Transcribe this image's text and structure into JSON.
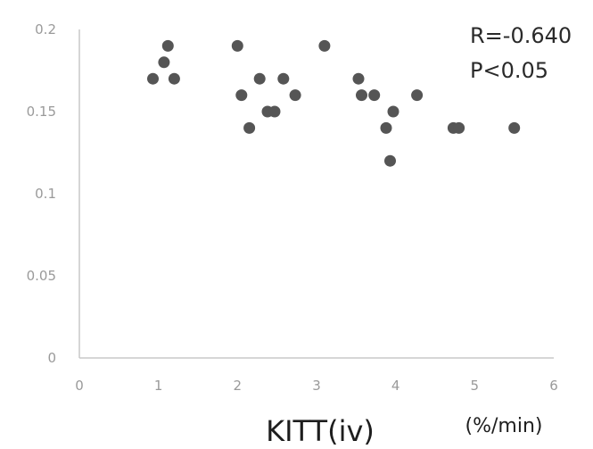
{
  "chart_data": {
    "type": "scatter",
    "title": "",
    "xlabel": "KITT(iv)",
    "xunit": "(%/min)",
    "ylabel": "",
    "xlim": [
      0,
      6
    ],
    "ylim": [
      0,
      0.2
    ],
    "xticks": [
      "0",
      "1",
      "2",
      "3",
      "4",
      "5",
      "6"
    ],
    "yticks": [
      "0",
      "0.05",
      "0.1",
      "0.15",
      "0.2"
    ],
    "grid": false,
    "annotations": [
      "R=-0.640",
      "P<0.05"
    ],
    "colors": {
      "point": "#555555",
      "axis": "#c8c8c8",
      "tick": "#9a9a9a"
    },
    "points": [
      {
        "x": 0.93,
        "y": 0.17
      },
      {
        "x": 1.07,
        "y": 0.18
      },
      {
        "x": 1.12,
        "y": 0.19
      },
      {
        "x": 1.2,
        "y": 0.17
      },
      {
        "x": 2.0,
        "y": 0.19
      },
      {
        "x": 2.05,
        "y": 0.16
      },
      {
        "x": 2.15,
        "y": 0.14
      },
      {
        "x": 2.28,
        "y": 0.17
      },
      {
        "x": 2.38,
        "y": 0.15
      },
      {
        "x": 2.47,
        "y": 0.15
      },
      {
        "x": 2.58,
        "y": 0.17
      },
      {
        "x": 2.73,
        "y": 0.16
      },
      {
        "x": 3.1,
        "y": 0.19
      },
      {
        "x": 3.53,
        "y": 0.17
      },
      {
        "x": 3.57,
        "y": 0.16
      },
      {
        "x": 3.73,
        "y": 0.16
      },
      {
        "x": 3.88,
        "y": 0.14
      },
      {
        "x": 3.93,
        "y": 0.12
      },
      {
        "x": 3.97,
        "y": 0.15
      },
      {
        "x": 4.27,
        "y": 0.16
      },
      {
        "x": 4.73,
        "y": 0.14
      },
      {
        "x": 4.8,
        "y": 0.14
      },
      {
        "x": 5.5,
        "y": 0.14
      }
    ]
  }
}
